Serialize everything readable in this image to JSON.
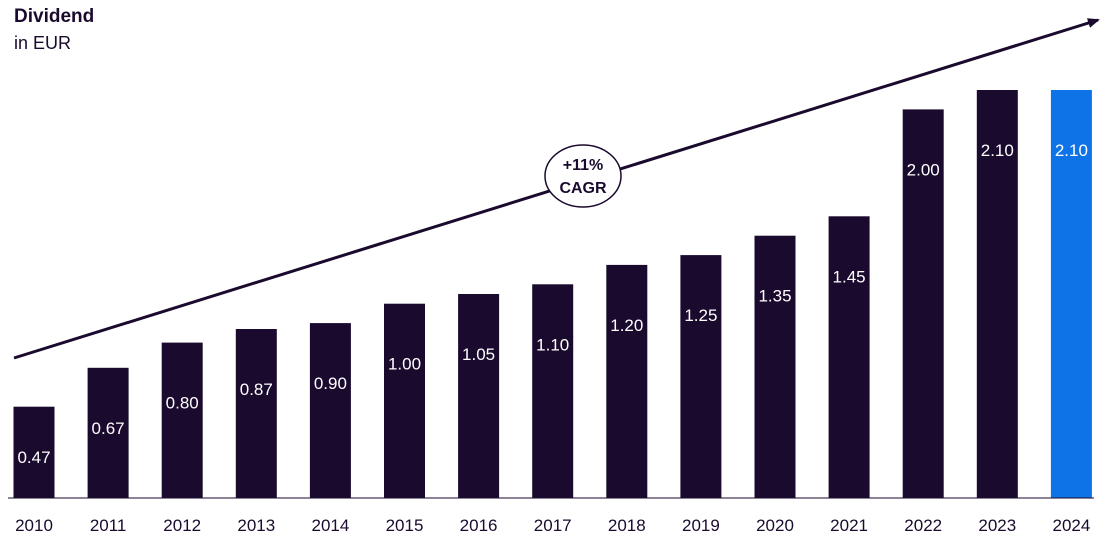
{
  "chart_data": {
    "type": "bar",
    "title": "Dividend",
    "subtitle": "in EUR",
    "categories": [
      "2010",
      "2011",
      "2012",
      "2013",
      "2014",
      "2015",
      "2016",
      "2017",
      "2018",
      "2019",
      "2020",
      "2021",
      "2022",
      "2023",
      "2024"
    ],
    "values": [
      0.47,
      0.67,
      0.8,
      0.87,
      0.9,
      1.0,
      1.05,
      1.1,
      1.2,
      1.25,
      1.35,
      1.45,
      2.0,
      2.1,
      2.1
    ],
    "value_labels": [
      "0.47",
      "0.67",
      "0.80",
      "0.87",
      "0.90",
      "1.00",
      "1.05",
      "1.10",
      "1.20",
      "1.25",
      "1.35",
      "1.45",
      "2.00",
      "2.10",
      "2.10"
    ],
    "ylim": [
      0,
      2.1
    ],
    "grid": false,
    "bar_color": "#1a0a2e",
    "highlight_color": "#0f73e8",
    "highlight_index": 14,
    "annotation": {
      "line1": "+11%",
      "line2": "CAGR"
    }
  }
}
